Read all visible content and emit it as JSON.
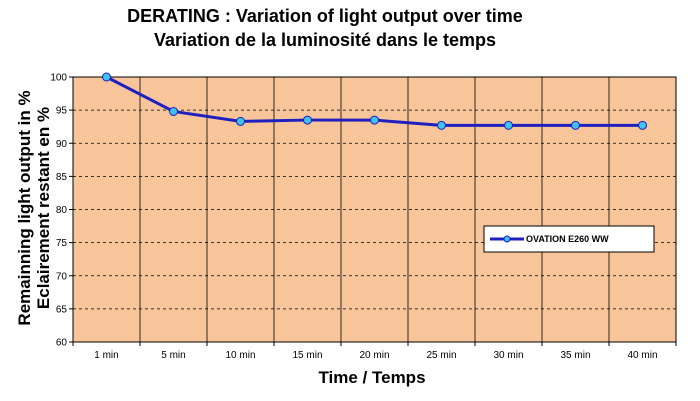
{
  "chart_data": {
    "type": "line",
    "title": "DERATING : Variation of light output over time",
    "subtitle": "Variation de la luminosité dans le temps",
    "xlabel": "Time / Temps",
    "ylabel_line1": "Remainning light output in %",
    "ylabel_line2": "Eclairement restant en %",
    "categories": [
      "1 min",
      "5 min",
      "10 min",
      "15 min",
      "20 min",
      "25 min",
      "30 min",
      "35 min",
      "40 min"
    ],
    "series": [
      {
        "name": "OVATION E260 WW",
        "values": [
          100,
          94.8,
          93.3,
          93.5,
          93.5,
          92.7,
          92.7,
          92.7,
          92.7
        ]
      }
    ],
    "ylim": [
      60,
      100
    ],
    "yticks": [
      60,
      65,
      70,
      75,
      80,
      85,
      90,
      95,
      100
    ],
    "grid": true,
    "legend_position": "right",
    "colors": {
      "plot_bg": "#F8C49A",
      "line": "#1F1FBF",
      "marker": "#3FC2F0",
      "grid": "#000000"
    }
  }
}
